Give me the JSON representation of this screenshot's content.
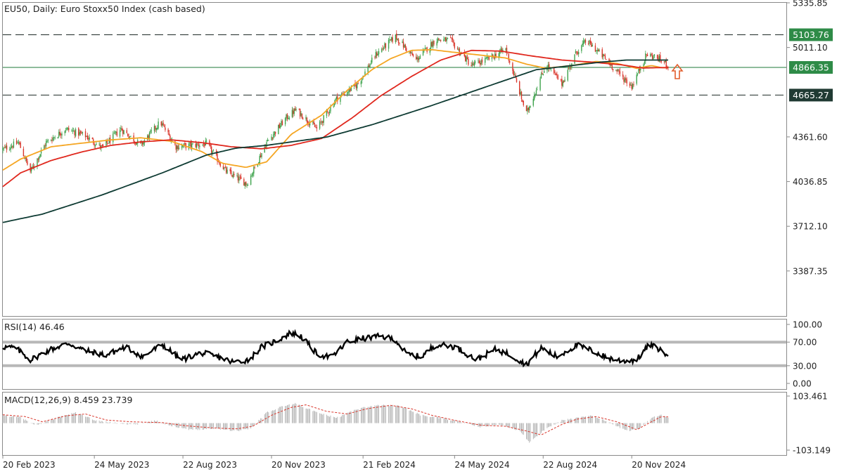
{
  "colors": {
    "background": "#ffffff",
    "frame": "#8a8a8a",
    "bull_candle": "#3fa34d",
    "bear_candle": "#d9352a",
    "ma_fast": "#f5a623",
    "ma_mid": "#e0281e",
    "ma_slow": "#0e3b33",
    "level_line": "#1d7a3a",
    "badge_green": "#2e8b47",
    "badge_dark": "#203a33",
    "rsi_line": "#000000",
    "rsi_band": "#b8b8b8",
    "macd_hist": "#b3b3b3",
    "macd_signal": "#d9352a",
    "arrow": "#e25d2c"
  },
  "chart_data": [
    {
      "type": "candlestick",
      "title": "EU50, Daily:  Euro Stoxx50 Index (cash based)",
      "ylim": [
        3060,
        5335.85
      ],
      "y_ticks": [
        "5335.85",
        "5011.10",
        "4361.60",
        "4036.85",
        "3712.10",
        "3387.35"
      ],
      "x_ticks": [
        "20 Feb 2023",
        "24 May 2023",
        "22 Aug 2023",
        "20 Nov 2023",
        "21 Feb 2024",
        "24 May 2024",
        "22 Aug 2024",
        "20 Nov 2024"
      ],
      "x_range": [
        "2023-02-20",
        "2024-12-27"
      ],
      "levels": [
        {
          "value": 5103.76,
          "label": "5103.76",
          "style": "dashed",
          "badge": "green"
        },
        {
          "value": 4866.35,
          "label": "4866.35",
          "style": "solid",
          "badge": "green"
        },
        {
          "value": 4665.27,
          "label": "4665.27",
          "style": "dashed",
          "badge": "dark"
        }
      ],
      "moving_averages": [
        {
          "color": "#f5a623",
          "points": [
            [
              "2023-02-20",
              4120
            ],
            [
              "2023-03-10",
              4200
            ],
            [
              "2023-04-10",
              4290
            ],
            [
              "2023-05-10",
              4315
            ],
            [
              "2023-06-10",
              4340
            ],
            [
              "2023-07-10",
              4355
            ],
            [
              "2023-08-10",
              4330
            ],
            [
              "2023-09-10",
              4255
            ],
            [
              "2023-10-01",
              4170
            ],
            [
              "2023-10-25",
              4140
            ],
            [
              "2023-11-15",
              4180
            ],
            [
              "2023-12-10",
              4380
            ],
            [
              "2024-01-10",
              4520
            ],
            [
              "2024-02-05",
              4700
            ],
            [
              "2024-03-01",
              4850
            ],
            [
              "2024-03-20",
              4930
            ],
            [
              "2024-04-10",
              4990
            ],
            [
              "2024-05-01",
              4995
            ],
            [
              "2024-05-25",
              4975
            ],
            [
              "2024-06-20",
              4955
            ],
            [
              "2024-07-15",
              4935
            ],
            [
              "2024-08-05",
              4890
            ],
            [
              "2024-08-25",
              4860
            ],
            [
              "2024-09-20",
              4880
            ],
            [
              "2024-10-15",
              4910
            ],
            [
              "2024-11-05",
              4895
            ],
            [
              "2024-11-25",
              4860
            ],
            [
              "2024-12-10",
              4880
            ],
            [
              "2024-12-20",
              4865
            ]
          ]
        },
        {
          "color": "#e0281e",
          "points": [
            [
              "2023-02-20",
              4000
            ],
            [
              "2023-03-10",
              4100
            ],
            [
              "2023-04-10",
              4190
            ],
            [
              "2023-05-10",
              4250
            ],
            [
              "2023-06-10",
              4300
            ],
            [
              "2023-07-10",
              4325
            ],
            [
              "2023-08-10",
              4340
            ],
            [
              "2023-09-10",
              4320
            ],
            [
              "2023-10-10",
              4290
            ],
            [
              "2023-11-10",
              4275
            ],
            [
              "2023-12-10",
              4300
            ],
            [
              "2024-01-10",
              4350
            ],
            [
              "2024-02-10",
              4500
            ],
            [
              "2024-03-10",
              4660
            ],
            [
              "2024-04-10",
              4800
            ],
            [
              "2024-05-10",
              4920
            ],
            [
              "2024-06-10",
              4990
            ],
            [
              "2024-07-10",
              4985
            ],
            [
              "2024-08-10",
              4950
            ],
            [
              "2024-09-10",
              4920
            ],
            [
              "2024-10-10",
              4905
            ],
            [
              "2024-11-10",
              4885
            ],
            [
              "2024-12-01",
              4862
            ],
            [
              "2024-12-20",
              4865
            ]
          ]
        },
        {
          "color": "#0e3b33",
          "points": [
            [
              "2023-02-20",
              3740
            ],
            [
              "2023-04-01",
              3800
            ],
            [
              "2023-06-01",
              3940
            ],
            [
              "2023-08-01",
              4100
            ],
            [
              "2023-09-15",
              4230
            ],
            [
              "2023-10-15",
              4280
            ],
            [
              "2023-11-15",
              4300
            ],
            [
              "2023-12-15",
              4330
            ],
            [
              "2024-01-15",
              4360
            ],
            [
              "2024-03-01",
              4450
            ],
            [
              "2024-05-01",
              4590
            ],
            [
              "2024-07-01",
              4740
            ],
            [
              "2024-08-15",
              4850
            ],
            [
              "2024-09-20",
              4880
            ],
            [
              "2024-10-20",
              4905
            ],
            [
              "2024-11-15",
              4920
            ],
            [
              "2024-12-20",
              4920
            ]
          ]
        }
      ],
      "price_path": [
        [
          "2023-02-20",
          4270
        ],
        [
          "2023-03-08",
          4320
        ],
        [
          "2023-03-20",
          4110
        ],
        [
          "2023-04-05",
          4320
        ],
        [
          "2023-04-25",
          4420
        ],
        [
          "2023-05-15",
          4370
        ],
        [
          "2023-06-01",
          4280
        ],
        [
          "2023-06-20",
          4420
        ],
        [
          "2023-07-10",
          4300
        ],
        [
          "2023-07-30",
          4470
        ],
        [
          "2023-08-15",
          4290
        ],
        [
          "2023-09-15",
          4310
        ],
        [
          "2023-10-05",
          4110
        ],
        [
          "2023-10-26",
          4020
        ],
        [
          "2023-11-15",
          4320
        ],
        [
          "2023-12-05",
          4500
        ],
        [
          "2023-12-15",
          4560
        ],
        [
          "2024-01-05",
          4420
        ],
        [
          "2024-01-25",
          4640
        ],
        [
          "2024-02-15",
          4740
        ],
        [
          "2024-03-05",
          4960
        ],
        [
          "2024-03-25",
          5090
        ],
        [
          "2024-04-15",
          4920
        ],
        [
          "2024-05-05",
          5070
        ],
        [
          "2024-05-20",
          5060
        ],
        [
          "2024-06-10",
          4880
        ],
        [
          "2024-06-28",
          4930
        ],
        [
          "2024-07-15",
          5000
        ],
        [
          "2024-08-05",
          4530
        ],
        [
          "2024-08-25",
          4890
        ],
        [
          "2024-09-10",
          4750
        ],
        [
          "2024-09-25",
          4980
        ],
        [
          "2024-10-05",
          5060
        ],
        [
          "2024-10-20",
          4960
        ],
        [
          "2024-11-10",
          4800
        ],
        [
          "2024-11-20",
          4730
        ],
        [
          "2024-12-05",
          4960
        ],
        [
          "2024-12-15",
          4940
        ],
        [
          "2024-12-27",
          4880
        ]
      ],
      "annotation": {
        "type": "arrow-up",
        "at": [
          "2024-12-27",
          4866.35
        ]
      }
    },
    {
      "type": "line",
      "title": "RSI(14) 46.46",
      "ylim": [
        0,
        100
      ],
      "y_ticks": [
        "100.00",
        "70.00",
        "30.00",
        "0.00"
      ],
      "bands": [
        70,
        30
      ],
      "series": [
        {
          "values": [
            [
              "2023-02-20",
              62
            ],
            [
              "2023-03-05",
              60
            ],
            [
              "2023-03-20",
              40
            ],
            [
              "2023-04-10",
              58
            ],
            [
              "2023-04-28",
              68
            ],
            [
              "2023-05-15",
              55
            ],
            [
              "2023-06-05",
              48
            ],
            [
              "2023-06-25",
              62
            ],
            [
              "2023-07-12",
              45
            ],
            [
              "2023-08-01",
              66
            ],
            [
              "2023-08-20",
              40
            ],
            [
              "2023-09-10",
              52
            ],
            [
              "2023-09-28",
              44
            ],
            [
              "2023-10-12",
              36
            ],
            [
              "2023-10-28",
              40
            ],
            [
              "2023-11-10",
              62
            ],
            [
              "2023-11-25",
              72
            ],
            [
              "2023-12-10",
              86
            ],
            [
              "2023-12-20",
              80
            ],
            [
              "2024-01-05",
              50
            ],
            [
              "2024-01-20",
              44
            ],
            [
              "2024-02-05",
              70
            ],
            [
              "2024-02-20",
              76
            ],
            [
              "2024-03-10",
              80
            ],
            [
              "2024-03-25",
              74
            ],
            [
              "2024-04-05",
              50
            ],
            [
              "2024-04-20",
              45
            ],
            [
              "2024-05-05",
              66
            ],
            [
              "2024-05-25",
              62
            ],
            [
              "2024-06-15",
              40
            ],
            [
              "2024-07-05",
              58
            ],
            [
              "2024-07-20",
              48
            ],
            [
              "2024-08-05",
              32
            ],
            [
              "2024-08-20",
              60
            ],
            [
              "2024-09-05",
              45
            ],
            [
              "2024-09-25",
              65
            ],
            [
              "2024-10-10",
              56
            ],
            [
              "2024-10-25",
              44
            ],
            [
              "2024-11-10",
              38
            ],
            [
              "2024-11-25",
              40
            ],
            [
              "2024-12-08",
              66
            ],
            [
              "2024-12-18",
              58
            ],
            [
              "2024-12-27",
              46.46
            ]
          ]
        }
      ]
    },
    {
      "type": "bar",
      "title": "MACD(12,26,9) 8.459 23.739",
      "ylim": [
        -103.149,
        103.461
      ],
      "y_ticks": [
        "103.461",
        "-103.149"
      ],
      "histogram": [
        [
          "2023-02-20",
          30
        ],
        [
          "2023-03-10",
          22
        ],
        [
          "2023-03-25",
          -10
        ],
        [
          "2023-04-15",
          20
        ],
        [
          "2023-05-05",
          40
        ],
        [
          "2023-05-25",
          10
        ],
        [
          "2023-06-15",
          0
        ],
        [
          "2023-07-05",
          -5
        ],
        [
          "2023-07-25",
          10
        ],
        [
          "2023-08-10",
          -10
        ],
        [
          "2023-08-30",
          -25
        ],
        [
          "2023-09-25",
          -20
        ],
        [
          "2023-10-15",
          -30
        ],
        [
          "2023-10-30",
          -20
        ],
        [
          "2023-11-15",
          40
        ],
        [
          "2023-12-01",
          65
        ],
        [
          "2023-12-15",
          75
        ],
        [
          "2024-01-05",
          40
        ],
        [
          "2024-01-25",
          20
        ],
        [
          "2024-02-15",
          55
        ],
        [
          "2024-03-10",
          70
        ],
        [
          "2024-03-30",
          65
        ],
        [
          "2024-04-20",
          30
        ],
        [
          "2024-05-10",
          20
        ],
        [
          "2024-05-30",
          5
        ],
        [
          "2024-06-20",
          -15
        ],
        [
          "2024-07-10",
          -5
        ],
        [
          "2024-07-30",
          -30
        ],
        [
          "2024-08-08",
          -75
        ],
        [
          "2024-08-25",
          -20
        ],
        [
          "2024-09-10",
          10
        ],
        [
          "2024-09-25",
          20
        ],
        [
          "2024-10-10",
          30
        ],
        [
          "2024-10-30",
          0
        ],
        [
          "2024-11-15",
          -30
        ],
        [
          "2024-11-28",
          -20
        ],
        [
          "2024-12-10",
          20
        ],
        [
          "2024-12-20",
          30
        ],
        [
          "2024-12-27",
          20
        ]
      ],
      "signal_line": [
        [
          "2023-02-20",
          32
        ],
        [
          "2023-03-15",
          25
        ],
        [
          "2023-04-01",
          5
        ],
        [
          "2023-04-25",
          28
        ],
        [
          "2023-05-15",
          35
        ],
        [
          "2023-06-05",
          12
        ],
        [
          "2023-07-01",
          5
        ],
        [
          "2023-08-01",
          2
        ],
        [
          "2023-08-25",
          -10
        ],
        [
          "2023-09-20",
          -18
        ],
        [
          "2023-10-15",
          -22
        ],
        [
          "2023-11-01",
          -12
        ],
        [
          "2023-11-20",
          30
        ],
        [
          "2023-12-10",
          60
        ],
        [
          "2023-12-25",
          70
        ],
        [
          "2024-01-15",
          45
        ],
        [
          "2024-02-05",
          35
        ],
        [
          "2024-02-25",
          55
        ],
        [
          "2024-03-20",
          68
        ],
        [
          "2024-04-10",
          55
        ],
        [
          "2024-05-01",
          30
        ],
        [
          "2024-05-25",
          10
        ],
        [
          "2024-06-20",
          -8
        ],
        [
          "2024-07-15",
          -12
        ],
        [
          "2024-08-05",
          -30
        ],
        [
          "2024-08-20",
          -45
        ],
        [
          "2024-09-10",
          -5
        ],
        [
          "2024-09-25",
          15
        ],
        [
          "2024-10-15",
          25
        ],
        [
          "2024-11-05",
          5
        ],
        [
          "2024-11-25",
          -25
        ],
        [
          "2024-12-10",
          5
        ],
        [
          "2024-12-20",
          25
        ],
        [
          "2024-12-27",
          23.739
        ]
      ]
    }
  ]
}
